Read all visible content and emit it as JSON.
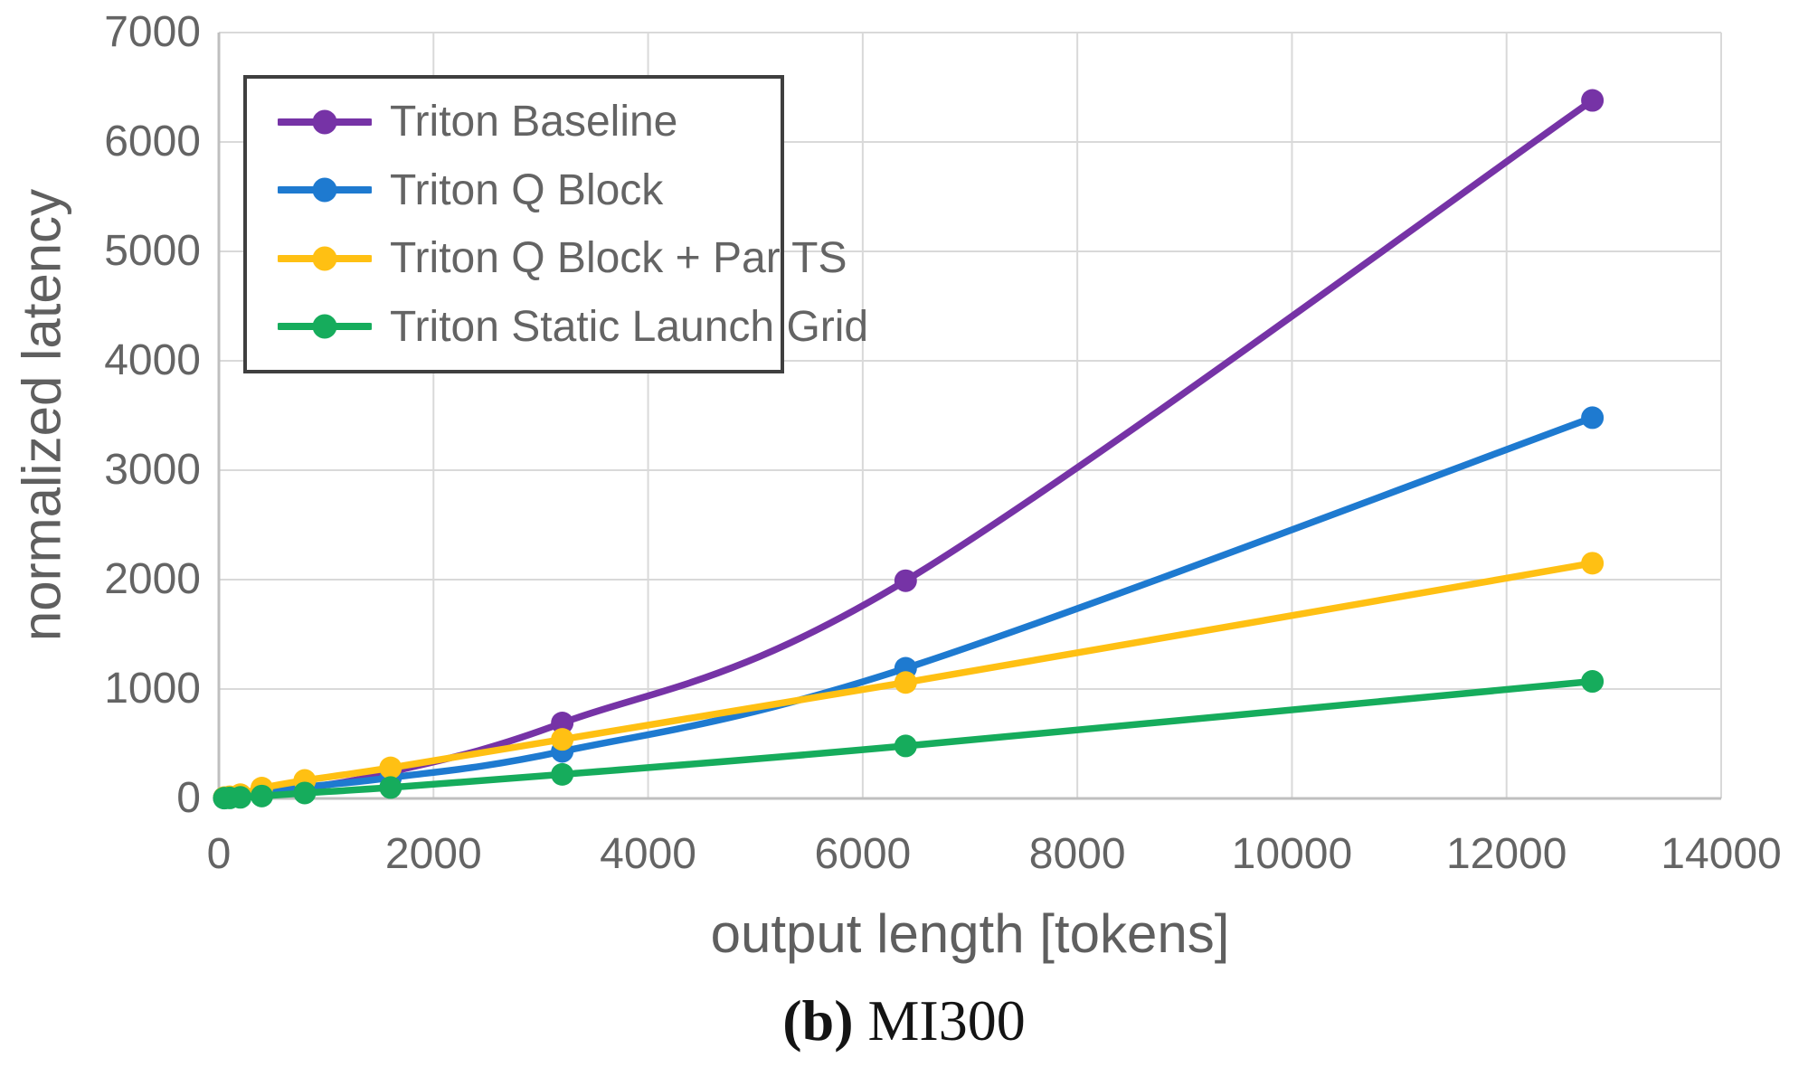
{
  "figure": {
    "caption_label": "(b)",
    "caption_text": "MI300"
  },
  "colors": {
    "background": "#FFFFFF",
    "grid": "#D9D9D9",
    "axis": "#BFBFBF",
    "tick_text": "#646464",
    "axis_title_text": "#5F5F5F",
    "legend_border": "#3F3F3F",
    "caption_text": "#141414"
  },
  "chart_data": {
    "type": "line",
    "title": "",
    "xlabel": "output length [tokens]",
    "ylabel": "normalized latency",
    "xlim": [
      0,
      14000
    ],
    "ylim": [
      0,
      7000
    ],
    "x_ticks": [
      0,
      2000,
      4000,
      6000,
      8000,
      10000,
      12000,
      14000
    ],
    "y_ticks": [
      0,
      1000,
      2000,
      3000,
      4000,
      5000,
      6000,
      7000
    ],
    "grid": true,
    "legend_position": "top-left",
    "marker": "circle",
    "smooth": true,
    "x": [
      50,
      100,
      200,
      400,
      800,
      1600,
      3200,
      6400,
      12800
    ],
    "series": [
      {
        "name": "Triton Baseline",
        "color": "#7633A6",
        "values": [
          5,
          10,
          22,
          48,
          95,
          240,
          690,
          1990,
          6380
        ]
      },
      {
        "name": "Triton Q Block",
        "color": "#1E7AD0",
        "values": [
          5,
          9,
          20,
          50,
          105,
          190,
          430,
          1190,
          3480
        ]
      },
      {
        "name": "Triton Q Block + Par TS",
        "color": "#FFC013",
        "values": [
          8,
          15,
          35,
          95,
          165,
          280,
          540,
          1060,
          2150
        ]
      },
      {
        "name": "Triton Static Launch Grid",
        "color": "#16AC5C",
        "values": [
          3,
          5,
          10,
          22,
          50,
          100,
          220,
          480,
          1070
        ]
      }
    ]
  }
}
